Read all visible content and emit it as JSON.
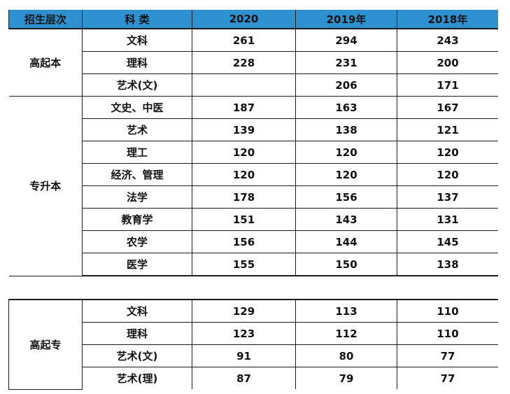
{
  "header": {
    "level": "招生层次",
    "subject": "科 类",
    "y2020": "2020",
    "y2019": "2019年",
    "y2018": "2018年"
  },
  "groups": [
    {
      "level": "高起本",
      "rows": [
        {
          "subject": "文科",
          "y2020": "261",
          "y2019": "294",
          "y2018": "243"
        },
        {
          "subject": "理科",
          "y2020": "228",
          "y2019": "231",
          "y2018": "200"
        },
        {
          "subject": "艺术(文)",
          "y2020": "",
          "y2019": "206",
          "y2018": "171"
        }
      ]
    },
    {
      "level": "专升本",
      "rows": [
        {
          "subject": "文史、中医",
          "y2020": "187",
          "y2019": "163",
          "y2018": "167"
        },
        {
          "subject": "艺术",
          "y2020": "139",
          "y2019": "138",
          "y2018": "121"
        },
        {
          "subject": "理工",
          "y2020": "120",
          "y2019": "120",
          "y2018": "120"
        },
        {
          "subject": "经济、管理",
          "y2020": "120",
          "y2019": "120",
          "y2018": "120"
        },
        {
          "subject": "法学",
          "y2020": "178",
          "y2019": "156",
          "y2018": "137"
        },
        {
          "subject": "教育学",
          "y2020": "151",
          "y2019": "143",
          "y2018": "131"
        },
        {
          "subject": "农学",
          "y2020": "156",
          "y2019": "144",
          "y2018": "145"
        },
        {
          "subject": "医学",
          "y2020": "155",
          "y2019": "150",
          "y2018": "138"
        }
      ]
    },
    {
      "level": "高起专",
      "rows": [
        {
          "subject": "文科",
          "y2020": "129",
          "y2019": "113",
          "y2018": "110"
        },
        {
          "subject": "理科",
          "y2020": "123",
          "y2019": "112",
          "y2018": "110"
        },
        {
          "subject": "艺术(文)",
          "y2020": "91",
          "y2019": "80",
          "y2018": "77"
        },
        {
          "subject": "艺术(理)",
          "y2020": "87",
          "y2019": "79",
          "y2018": "77"
        }
      ]
    }
  ],
  "colors": {
    "header_bg": "#2d91cf"
  }
}
